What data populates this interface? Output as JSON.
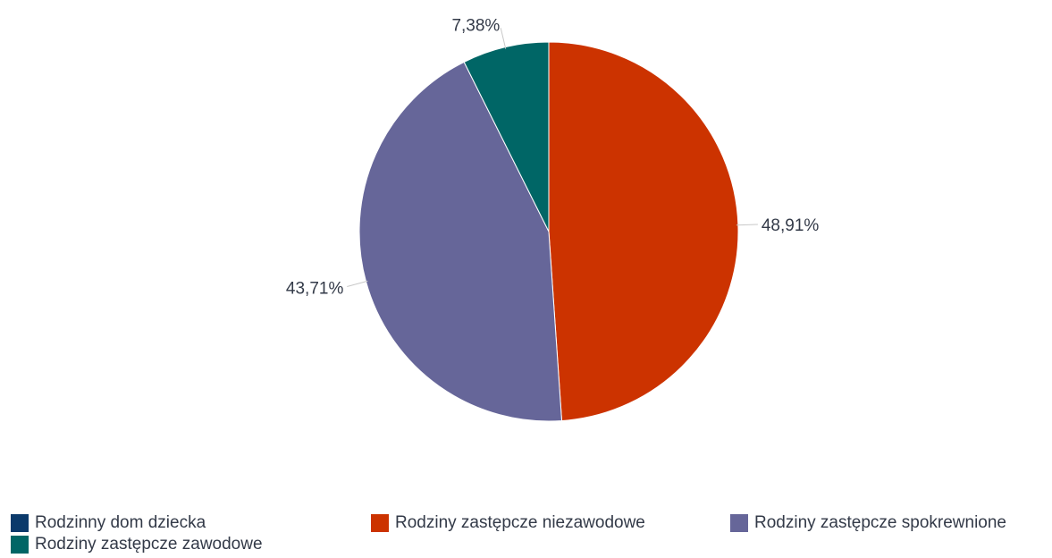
{
  "chart_data": {
    "type": "pie",
    "categories": [
      "Rodzinny dom dziecka",
      "Rodziny zastępcze niezawodowe",
      "Rodziny zastępcze spokrewnione",
      "Rodziny zastępcze zawodowe"
    ],
    "values": [
      0,
      48.91,
      43.71,
      7.38
    ],
    "data_labels": [
      "",
      "48,91%",
      "43,71%",
      "7,38%"
    ],
    "colors": [
      "#0b3a6b",
      "#cc3300",
      "#666699",
      "#006666"
    ],
    "legend_position": "bottom",
    "title": ""
  }
}
